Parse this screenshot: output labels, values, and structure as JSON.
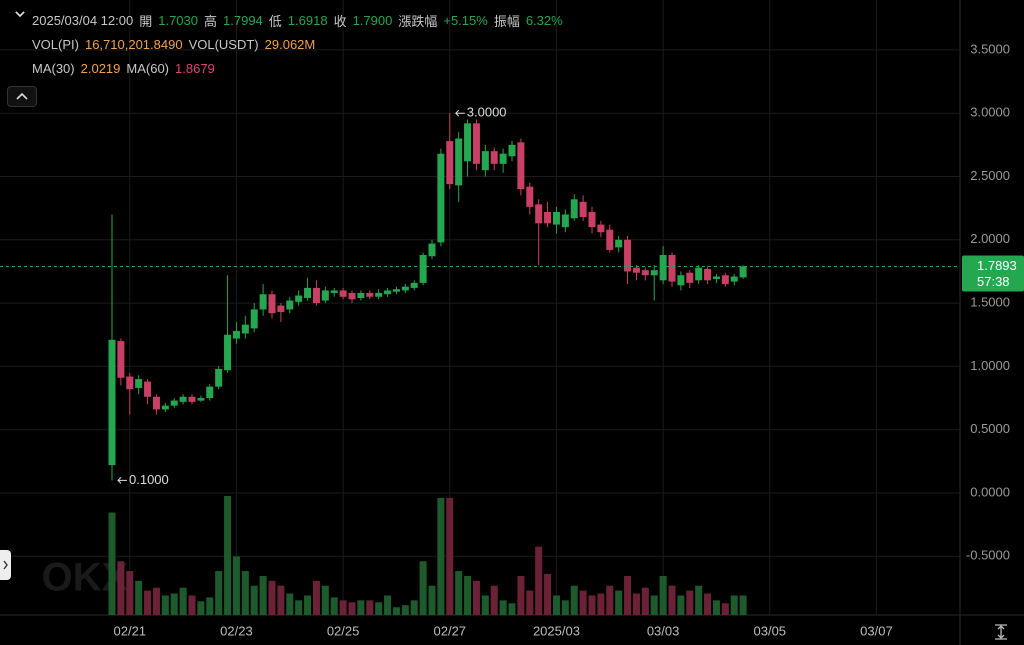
{
  "header": {
    "time": "2025/03/04 12:00",
    "rows": [
      [
        {
          "label": "開",
          "value": "1.7030",
          "color": "#25a750"
        },
        {
          "label": "高",
          "value": "1.7994",
          "color": "#25a750"
        },
        {
          "label": "低",
          "value": "1.6918",
          "color": "#25a750"
        },
        {
          "label": "收",
          "value": "1.7900",
          "color": "#25a750"
        },
        {
          "label": "漲跌幅",
          "value": "+5.15%",
          "color": "#25a750"
        },
        {
          "label": "振幅",
          "value": "6.32%",
          "color": "#25a750"
        }
      ],
      [
        {
          "label": "VOL(PI)",
          "value": "16,710,201.8490",
          "color": "#f0a24a"
        },
        {
          "label": "VOL(USDT)",
          "value": "29.062M",
          "color": "#f0a24a"
        }
      ],
      [
        {
          "label": "MA(30)",
          "value": "2.0219",
          "color": "#f0a24a"
        },
        {
          "label": "MA(60)",
          "value": "1.8679",
          "color": "#e0407a"
        }
      ]
    ]
  },
  "watermark": "OKX",
  "chart_data": {
    "type": "candlestick",
    "up_color": "#25a750",
    "down_color": "#ca3f64",
    "volume_up_color": "#1d5a2c",
    "volume_down_color": "#6b2236",
    "x": [
      0,
      1,
      2,
      3,
      4,
      5,
      6,
      7,
      8,
      9,
      10,
      11,
      12,
      13,
      14,
      15,
      16,
      17,
      18,
      19,
      20,
      21,
      22,
      23,
      24,
      25,
      26,
      27,
      28,
      29,
      30,
      31,
      32,
      33,
      34,
      35,
      36,
      37,
      38,
      39,
      40,
      41,
      42,
      43,
      44,
      45,
      46,
      47,
      48,
      49,
      50,
      51,
      52,
      53,
      54,
      55,
      56,
      57,
      58,
      59,
      60,
      61,
      62,
      63,
      64,
      65,
      66,
      67,
      68,
      69,
      70,
      71
    ],
    "open": [
      0.22,
      1.2,
      0.92,
      0.83,
      0.88,
      0.76,
      0.66,
      0.69,
      0.72,
      0.76,
      0.73,
      0.75,
      0.84,
      0.97,
      1.22,
      1.26,
      1.3,
      1.45,
      1.57,
      1.48,
      1.45,
      1.51,
      1.54,
      1.62,
      1.52,
      1.58,
      1.6,
      1.58,
      1.54,
      1.58,
      1.55,
      1.57,
      1.59,
      1.6,
      1.62,
      1.66,
      1.87,
      1.98,
      2.78,
      2.43,
      2.62,
      2.92,
      2.55,
      2.7,
      2.6,
      2.66,
      2.77,
      2.42,
      2.28,
      2.22,
      2.12,
      2.1,
      2.17,
      2.3,
      2.22,
      2.12,
      2.08,
      1.94,
      2.0,
      1.78,
      1.76,
      1.72,
      1.68,
      1.88,
      1.64,
      1.74,
      1.68,
      1.77,
      1.69,
      1.72,
      1.67,
      1.703
    ],
    "high": [
      2.2,
      1.22,
      0.95,
      0.93,
      0.9,
      0.78,
      0.71,
      0.75,
      0.78,
      0.78,
      0.77,
      0.86,
      1.0,
      1.72,
      1.35,
      1.4,
      1.5,
      1.65,
      1.6,
      1.5,
      1.55,
      1.6,
      1.7,
      1.68,
      1.63,
      1.62,
      1.62,
      1.6,
      1.6,
      1.6,
      1.61,
      1.62,
      1.63,
      1.65,
      1.68,
      1.9,
      2.0,
      2.72,
      3.0,
      2.85,
      2.95,
      2.95,
      2.75,
      2.73,
      2.72,
      2.78,
      2.8,
      2.45,
      2.32,
      2.3,
      2.26,
      2.24,
      2.36,
      2.35,
      2.26,
      2.15,
      2.12,
      2.03,
      2.03,
      1.8,
      1.78,
      1.8,
      1.95,
      1.9,
      1.75,
      1.76,
      1.8,
      1.79,
      1.73,
      1.74,
      1.73,
      1.7994
    ],
    "low": [
      0.1,
      0.85,
      0.62,
      0.78,
      0.7,
      0.62,
      0.64,
      0.67,
      0.7,
      0.7,
      0.72,
      0.73,
      0.82,
      0.95,
      1.18,
      1.22,
      1.27,
      1.4,
      1.38,
      1.35,
      1.42,
      1.48,
      1.52,
      1.48,
      1.5,
      1.55,
      1.53,
      1.5,
      1.52,
      1.53,
      1.53,
      1.55,
      1.57,
      1.58,
      1.6,
      1.64,
      1.85,
      1.95,
      2.4,
      2.3,
      2.5,
      2.55,
      2.5,
      2.55,
      2.53,
      2.62,
      2.35,
      2.2,
      1.8,
      2.1,
      2.05,
      2.06,
      2.15,
      2.15,
      2.05,
      2.02,
      1.9,
      1.9,
      1.65,
      1.68,
      1.68,
      1.52,
      1.65,
      1.63,
      1.6,
      1.62,
      1.65,
      1.65,
      1.66,
      1.63,
      1.64,
      1.6918
    ],
    "close": [
      1.21,
      0.91,
      0.82,
      0.9,
      0.76,
      0.66,
      0.69,
      0.73,
      0.76,
      0.72,
      0.75,
      0.84,
      0.98,
      1.25,
      1.28,
      1.33,
      1.45,
      1.57,
      1.42,
      1.43,
      1.52,
      1.56,
      1.62,
      1.5,
      1.6,
      1.6,
      1.55,
      1.53,
      1.58,
      1.55,
      1.58,
      1.6,
      1.61,
      1.63,
      1.66,
      1.88,
      1.97,
      2.68,
      2.44,
      2.8,
      2.92,
      2.6,
      2.7,
      2.6,
      2.68,
      2.75,
      2.4,
      2.26,
      2.13,
      2.13,
      2.22,
      2.2,
      2.32,
      2.18,
      2.1,
      2.06,
      1.92,
      2.0,
      1.75,
      1.74,
      1.72,
      1.76,
      1.88,
      1.67,
      1.72,
      1.66,
      1.78,
      1.68,
      1.71,
      1.65,
      1.71,
      1.79
    ],
    "volume": [
      105,
      55,
      45,
      35,
      25,
      28,
      20,
      22,
      28,
      20,
      14,
      18,
      45,
      122,
      60,
      45,
      30,
      40,
      35,
      30,
      22,
      15,
      20,
      35,
      30,
      18,
      15,
      13,
      15,
      15,
      13,
      20,
      8,
      10,
      15,
      55,
      30,
      120,
      120,
      45,
      40,
      35,
      20,
      30,
      15,
      12,
      40,
      25,
      70,
      42,
      20,
      15,
      30,
      25,
      20,
      22,
      30,
      25,
      40,
      22,
      28,
      20,
      40,
      30,
      20,
      25,
      30,
      22,
      15,
      12,
      20,
      20
    ],
    "vlim": [
      0,
      125
    ],
    "xlim": [
      -12.6,
      95.4
    ],
    "xticks": [
      {
        "value": 2,
        "label": "02/21"
      },
      {
        "value": 14,
        "label": "02/23"
      },
      {
        "value": 26,
        "label": "02/25"
      },
      {
        "value": 38,
        "label": "02/27"
      },
      {
        "value": 50,
        "label": "2025/03"
      },
      {
        "value": 62,
        "label": "03/03"
      },
      {
        "value": 74,
        "label": "03/05"
      },
      {
        "value": 86,
        "label": "03/07"
      }
    ],
    "ylim": [
      -0.9637,
      3.8942
    ],
    "yticks": [
      {
        "value": 3.5,
        "label": "3.5000"
      },
      {
        "value": 3,
        "label": "3.0000"
      },
      {
        "value": 2.5,
        "label": "2.5000"
      },
      {
        "value": 2,
        "label": "2.0000"
      },
      {
        "value": 1.5,
        "label": "1.5000"
      },
      {
        "value": 1,
        "label": "1.0000"
      },
      {
        "value": 0.5,
        "label": "0.5000"
      },
      {
        "value": 0,
        "label": "0.0000"
      },
      {
        "value": -0.5,
        "label": "-0.5000"
      }
    ],
    "grid": true,
    "annotations": [
      {
        "x": 38,
        "value": 3.0,
        "label": "3.0000"
      },
      {
        "x": 0,
        "value": 0.1,
        "label": "0.1000"
      }
    ],
    "last_price": {
      "value": 1.7893,
      "label": "1.7893",
      "countdown": "57:38"
    }
  }
}
